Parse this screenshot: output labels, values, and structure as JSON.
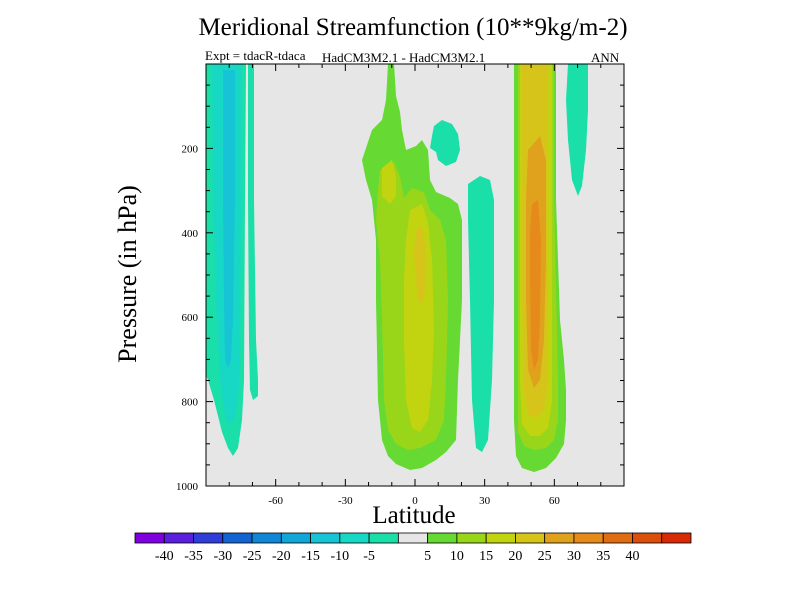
{
  "chart_data": {
    "type": "filled-contour",
    "title": "Meridional Streamfunction (10**9kg/m-2)",
    "expt_label": "Expt = tdacR-tdaca",
    "model_label": "HadCM3M2.1 - HadCM3M2.1",
    "season_label": "ANN",
    "xlabel": "Latitude",
    "ylabel": "Pressure (in hPa)",
    "xlim": [
      -90,
      90
    ],
    "ylim": [
      1000,
      0
    ],
    "x_ticks": [
      {
        "value": -60,
        "label": "-60"
      },
      {
        "value": -30,
        "label": "-30"
      },
      {
        "value": 0,
        "label": "0"
      },
      {
        "value": 30,
        "label": "30"
      },
      {
        "value": 60,
        "label": "60"
      }
    ],
    "y_ticks": [
      {
        "value": 200,
        "label": "200"
      },
      {
        "value": 400,
        "label": "400"
      },
      {
        "value": 600,
        "label": "600"
      },
      {
        "value": 800,
        "label": "800"
      },
      {
        "value": 1000,
        "label": "1000"
      }
    ],
    "background_color": "#e6e6e6",
    "colorbar": {
      "colors": [
        "#8000e0",
        "#5a1fdc",
        "#2f3ed8",
        "#1463d2",
        "#0f87d6",
        "#10a6d8",
        "#16c4d6",
        "#17d8c4",
        "#1adfa8",
        "#e6e6e6",
        "#66d933",
        "#99d61a",
        "#c2d40f",
        "#d6c41a",
        "#e0a21c",
        "#e68a1c",
        "#e06d12",
        "#dc4e0c",
        "#d82a06"
      ],
      "labels": [
        "-40",
        "-35",
        "-30",
        "-25",
        "-20",
        "-15",
        "-10",
        "-5",
        "5",
        "10",
        "15",
        "20",
        "25",
        "30",
        "35",
        "40"
      ]
    },
    "features": [
      {
        "name": "southern-cell-outer",
        "level": -5,
        "color": "#1adfa8",
        "region": "lat -90 to -68, 0-940 hPa"
      },
      {
        "name": "southern-cell-mid",
        "level": -10,
        "color": "#17d8c4",
        "region": "lat -85 to -74, 0-900 hPa"
      },
      {
        "name": "southern-cell-core",
        "level": -15,
        "color": "#16c4d6",
        "region": "lat -82 to -76, 100-800 hPa"
      },
      {
        "name": "southern-thin-band",
        "level": -5,
        "color": "#1adfa8",
        "region": "lat -70 to -67, 0-800 hPa"
      },
      {
        "name": "tropical-cell-outer",
        "level": 5,
        "color": "#66d933",
        "region": "lat -20 to 20, 0-960 hPa"
      },
      {
        "name": "tropical-cell-mid",
        "level": 10,
        "color": "#99d61a",
        "region": "lat -14 to 14, 230-910 hPa"
      },
      {
        "name": "tropical-cell-inner",
        "level": 15,
        "color": "#c2d40f",
        "region": "lat -2 to 10, 300-870 hPa"
      },
      {
        "name": "tropical-cell-core",
        "level": 20,
        "color": "#d6c41a",
        "region": "lat 1 to 7, 400-520 hPa"
      },
      {
        "name": "equatorial-negative-patch",
        "level": -5,
        "color": "#1adfa8",
        "region": "lat 9 to 20, 80-150 hPa"
      },
      {
        "name": "subtropical-negative-band",
        "level": -5,
        "color": "#1adfa8",
        "region": "lat 23 to 33, 290-920 hPa"
      },
      {
        "name": "northern-cell-outer",
        "level": 5,
        "color": "#66d933",
        "region": "lat 41 to 62, 0-970 hPa"
      },
      {
        "name": "northern-cell-mid",
        "level": 10,
        "color": "#99d61a",
        "region": "lat 43 to 61, 0-950 hPa"
      },
      {
        "name": "northern-cell-inner",
        "level": 15,
        "color": "#c2d40f",
        "region": "lat 45 to 59, 0-930 hPa"
      },
      {
        "name": "northern-cell-band",
        "level": 20,
        "color": "#d6c41a",
        "region": "lat 47 to 57, 0-900 hPa"
      },
      {
        "name": "northern-cell-core",
        "level": 25,
        "color": "#e0a21c",
        "region": "lat 49 to 55, 200-860 hPa"
      },
      {
        "name": "northern-cell-peak",
        "level": 30,
        "color": "#e68a1c",
        "region": "lat 50 to 53, 330-800 hPa"
      },
      {
        "name": "high-latitude-negative",
        "level": -5,
        "color": "#1adfa8",
        "region": "lat 67 to 75, 0-400 hPa"
      }
    ]
  }
}
